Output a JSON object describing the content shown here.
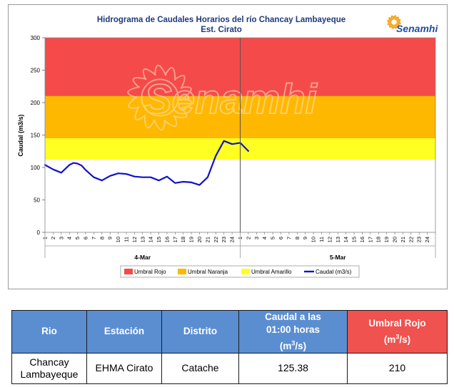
{
  "chart_data": {
    "type": "line",
    "title": "Hidrograma de Caudales Horarios del río Chancay Lambayeque",
    "subtitle": "Est. Cirato",
    "ylabel": "Caudal  (m3/s)",
    "xlabel": "",
    "ylim": [
      0,
      300
    ],
    "yticks": [
      "0",
      "50",
      "100",
      "150",
      "200",
      "250",
      "300"
    ],
    "hour_ticks": [
      "1",
      "2",
      "3",
      "4",
      "5",
      "6",
      "7",
      "8",
      "9",
      "10",
      "11",
      "12",
      "13",
      "14",
      "15",
      "16",
      "17",
      "18",
      "19",
      "20",
      "21",
      "22",
      "23",
      "24",
      "1",
      "2",
      "3",
      "4",
      "5",
      "6",
      "7",
      "8",
      "9",
      "10",
      "11",
      "12",
      "13",
      "14",
      "15",
      "16",
      "17",
      "18",
      "19",
      "20",
      "21",
      "22",
      "23",
      "24"
    ],
    "day_labels": [
      "4-Mar",
      "5-Mar"
    ],
    "bands": [
      {
        "name": "Umbral Rojo",
        "from": 210,
        "to": 300,
        "color": "#f44a4a"
      },
      {
        "name": "Umbral Naranja",
        "from": 145,
        "to": 210,
        "color": "#ffb800"
      },
      {
        "name": "Umbral Amarillo",
        "from": 112,
        "to": 145,
        "color": "#ffff22"
      }
    ],
    "series": [
      {
        "name": "Caudal (m3/s)",
        "color": "#1111cc",
        "x": [
          0,
          1,
          2,
          3,
          3.5,
          4,
          4.5,
          5,
          6,
          7,
          8,
          9,
          10,
          11,
          12,
          13,
          14,
          15,
          16,
          17,
          18,
          19,
          20,
          21,
          22,
          23,
          24,
          25
        ],
        "values": [
          104,
          97,
          92,
          104,
          107,
          106,
          103,
          96,
          85,
          80,
          87,
          91,
          90,
          86,
          85,
          85,
          80,
          86,
          76,
          78,
          77,
          73,
          85,
          118,
          141,
          136,
          138,
          125.38
        ]
      }
    ],
    "legend": [
      "Umbral Rojo",
      "Umbral Naranja",
      "Umbral Amarillo",
      "Caudal (m3/s)"
    ],
    "legend_position": "bottom",
    "grid": false
  },
  "watermark": "Senamhi",
  "logo": "Senamhi",
  "table": {
    "headers": {
      "rio": "Rio",
      "estacion": "Estación",
      "distrito": "Distrito",
      "caudal_line1": "Caudal a las",
      "caudal_line2": "01:00 horas",
      "caudal_unit_pre": "(m",
      "caudal_unit_sup": "3",
      "caudal_unit_post": "/s)",
      "umbral_line1": "Umbral Rojo",
      "umbral_unit_pre": "(m",
      "umbral_unit_sup": "3",
      "umbral_unit_post": "/s)"
    },
    "row": {
      "rio_line1": "Chancay",
      "rio_line2": "Lambayeque",
      "estacion": "EHMA Cirato",
      "distrito": "Catache",
      "caudal": "125.38",
      "umbral": "210"
    }
  },
  "colors": {
    "header_blue": "#5b8ed1",
    "header_red": "#f0524f",
    "title_navy": "#1f3a7a",
    "line_blue": "#1111cc"
  }
}
